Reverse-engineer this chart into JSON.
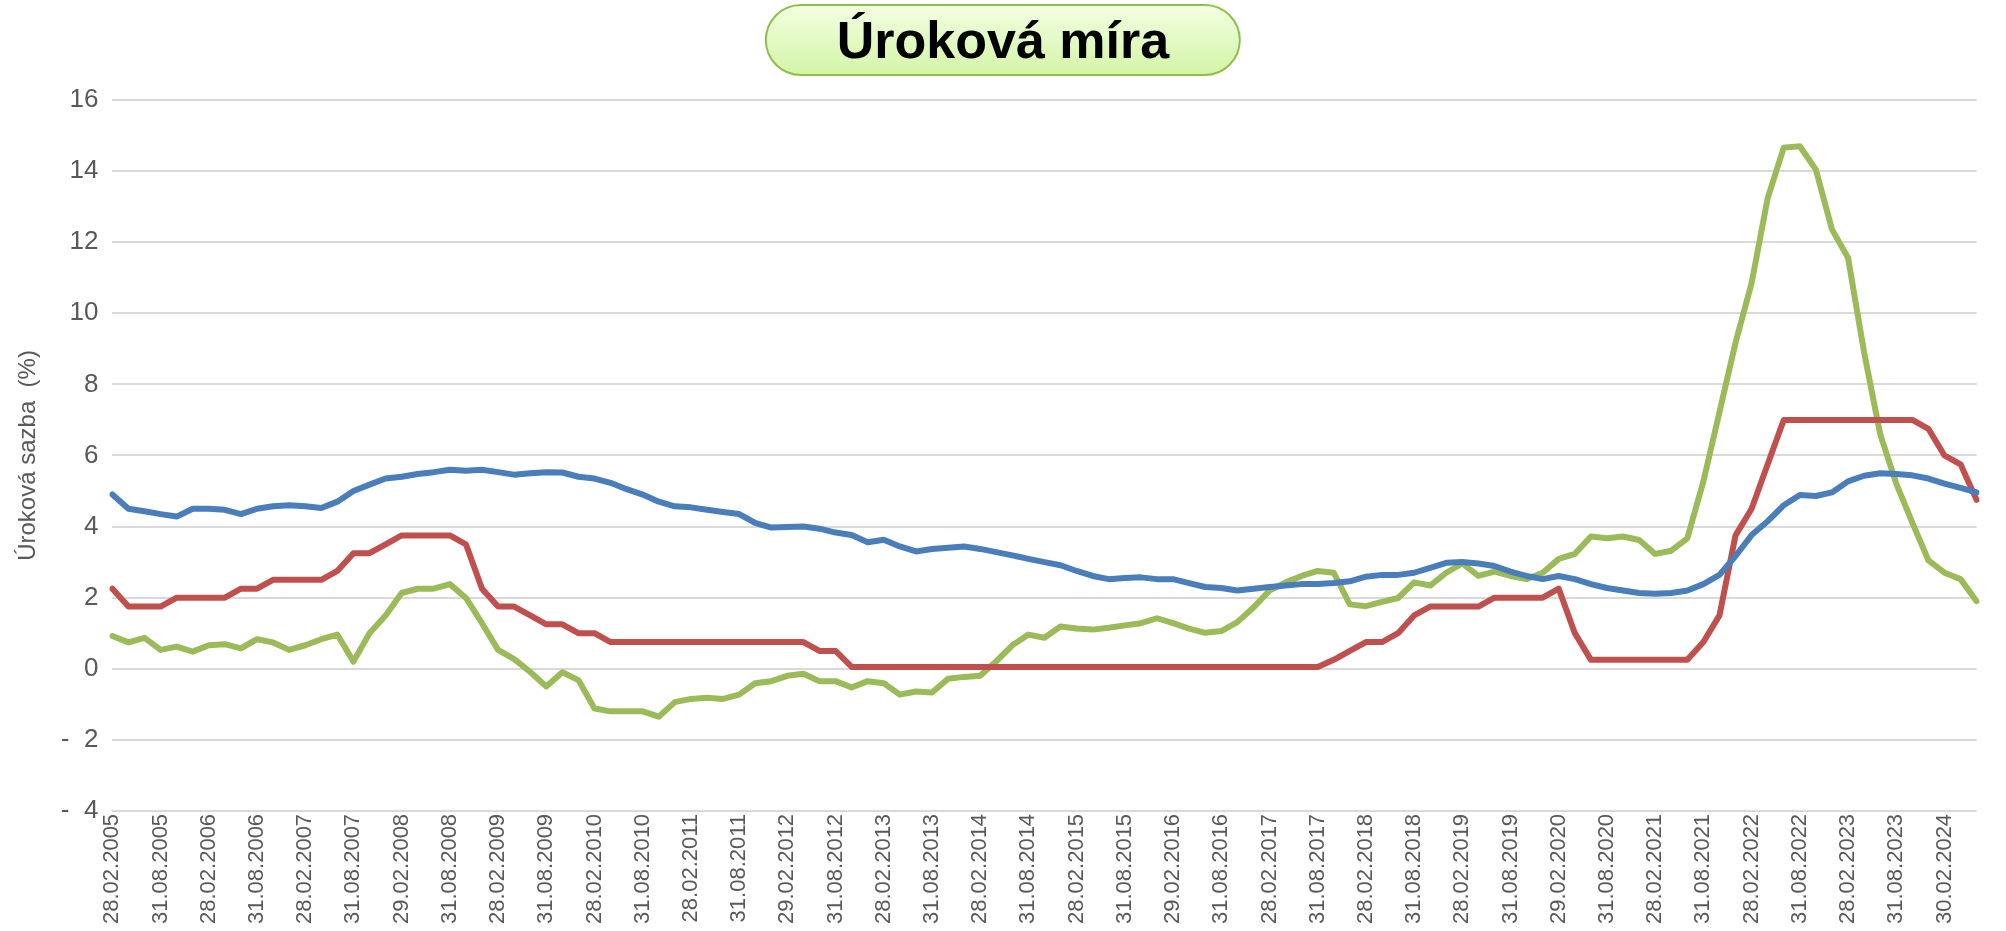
{
  "chart_data": {
    "type": "line",
    "title": "Úroková míra",
    "ylabel": "Úroková sazba  (%)",
    "categories": [
      "28.02.2005",
      null,
      null,
      "31.08.2005",
      null,
      null,
      "28.02.2006",
      null,
      null,
      "31.08.2006",
      null,
      null,
      "28.02.2007",
      null,
      null,
      "31.08.2007",
      null,
      null,
      "29.02.2008",
      null,
      null,
      "31.08.2008",
      null,
      null,
      "28.02.2009",
      null,
      null,
      "31.08.2009",
      null,
      null,
      "28.02.2010",
      null,
      null,
      "31.08.2010",
      null,
      null,
      "28.02.2011",
      null,
      null,
      "31.08.2011",
      null,
      null,
      "29.02.2012",
      null,
      null,
      "31.08.2012",
      null,
      null,
      "28.02.2013",
      null,
      null,
      "31.08.2013",
      null,
      null,
      "28.02.2014",
      null,
      null,
      "31.08.2014",
      null,
      null,
      "28.02.2015",
      null,
      null,
      "31.08.2015",
      null,
      null,
      "29.02.2016",
      null,
      null,
      "31.08.2016",
      null,
      null,
      "28.02.2017",
      null,
      null,
      "31.08.2017",
      null,
      null,
      "28.02.2018",
      null,
      null,
      "31.08.2018",
      null,
      null,
      "28.02.2019",
      null,
      null,
      "31.08.2019",
      null,
      null,
      "29.02.2020",
      null,
      null,
      "31.08.2020",
      null,
      null,
      "28.02.2021",
      null,
      null,
      "31.08.2021",
      null,
      null,
      "28.02.2022",
      null,
      null,
      "31.08.2022",
      null,
      null,
      "28.02.2023",
      null,
      null,
      "31.08.2023",
      null,
      null,
      "30.02.2024",
      null,
      null
    ],
    "series": [
      {
        "color": "#4a7ebb",
        "values": [
          4.9,
          4.5,
          4.43,
          4.35,
          4.28,
          4.5,
          4.5,
          4.47,
          4.35,
          4.5,
          4.57,
          4.6,
          4.57,
          4.52,
          4.7,
          5.0,
          5.18,
          5.35,
          5.4,
          5.48,
          5.53,
          5.6,
          5.57,
          5.6,
          5.53,
          5.46,
          5.5,
          5.53,
          5.52,
          5.4,
          5.35,
          5.23,
          5.05,
          4.9,
          4.7,
          4.57,
          4.54,
          4.47,
          4.41,
          4.35,
          4.1,
          3.97,
          3.99,
          4.0,
          3.94,
          3.83,
          3.76,
          3.56,
          3.63,
          3.44,
          3.3,
          3.37,
          3.4,
          3.44,
          3.37,
          3.28,
          3.19,
          3.09,
          3.0,
          2.91,
          2.75,
          2.61,
          2.52,
          2.55,
          2.57,
          2.52,
          2.52,
          2.41,
          2.3,
          2.27,
          2.2,
          2.25,
          2.3,
          2.34,
          2.38,
          2.38,
          2.41,
          2.46,
          2.59,
          2.64,
          2.64,
          2.7,
          2.84,
          2.98,
          3.0,
          2.96,
          2.89,
          2.73,
          2.61,
          2.52,
          2.61,
          2.52,
          2.38,
          2.27,
          2.2,
          2.13,
          2.11,
          2.13,
          2.2,
          2.38,
          2.64,
          3.17,
          3.76,
          4.15,
          4.6,
          4.89,
          4.86,
          4.96,
          5.27,
          5.43,
          5.5,
          5.48,
          5.44,
          5.35,
          5.21,
          5.09,
          4.96
        ]
      },
      {
        "color": "#c0504d",
        "values": [
          2.25,
          1.75,
          1.75,
          1.75,
          2.0,
          2.0,
          2.0,
          2.0,
          2.25,
          2.25,
          2.5,
          2.5,
          2.5,
          2.5,
          2.75,
          3.25,
          3.25,
          3.5,
          3.75,
          3.75,
          3.75,
          3.75,
          3.5,
          2.25,
          1.75,
          1.75,
          1.5,
          1.25,
          1.25,
          1.0,
          1.0,
          0.75,
          0.75,
          0.75,
          0.75,
          0.75,
          0.75,
          0.75,
          0.75,
          0.75,
          0.75,
          0.75,
          0.75,
          0.75,
          0.5,
          0.5,
          0.05,
          0.05,
          0.05,
          0.05,
          0.05,
          0.05,
          0.05,
          0.05,
          0.05,
          0.05,
          0.05,
          0.05,
          0.05,
          0.05,
          0.05,
          0.05,
          0.05,
          0.05,
          0.05,
          0.05,
          0.05,
          0.05,
          0.05,
          0.05,
          0.05,
          0.05,
          0.05,
          0.05,
          0.05,
          0.05,
          0.25,
          0.5,
          0.75,
          0.75,
          1.0,
          1.5,
          1.75,
          1.75,
          1.75,
          1.75,
          2.0,
          2.0,
          2.0,
          2.0,
          2.25,
          1.0,
          0.25,
          0.25,
          0.25,
          0.25,
          0.25,
          0.25,
          0.25,
          0.75,
          1.5,
          3.75,
          4.5,
          5.75,
          7.0,
          7.0,
          7.0,
          7.0,
          7.0,
          7.0,
          7.0,
          7.0,
          7.0,
          6.75,
          6.0,
          5.75,
          4.75
        ]
      },
      {
        "color": "#9bbb59",
        "values": [
          0.92,
          0.74,
          0.87,
          0.53,
          0.62,
          0.48,
          0.66,
          0.69,
          0.57,
          0.83,
          0.74,
          0.53,
          0.66,
          0.83,
          0.96,
          0.2,
          1.0,
          1.5,
          2.13,
          2.25,
          2.25,
          2.38,
          1.99,
          1.28,
          0.53,
          0.27,
          -0.09,
          -0.5,
          -0.1,
          -0.32,
          -1.12,
          -1.2,
          -1.2,
          -1.2,
          -1.35,
          -0.94,
          -0.85,
          -0.82,
          -0.85,
          -0.73,
          -0.41,
          -0.35,
          -0.2,
          -0.14,
          -0.35,
          -0.35,
          -0.53,
          -0.35,
          -0.41,
          -0.73,
          -0.64,
          -0.67,
          -0.28,
          -0.23,
          -0.2,
          0.21,
          0.66,
          0.96,
          0.87,
          1.19,
          1.13,
          1.1,
          1.15,
          1.22,
          1.28,
          1.42,
          1.28,
          1.13,
          1.01,
          1.06,
          1.31,
          1.72,
          2.2,
          2.43,
          2.61,
          2.75,
          2.7,
          1.81,
          1.76,
          1.88,
          1.99,
          2.43,
          2.34,
          2.7,
          2.96,
          2.61,
          2.73,
          2.61,
          2.52,
          2.7,
          3.09,
          3.23,
          3.72,
          3.67,
          3.72,
          3.62,
          3.23,
          3.32,
          3.67,
          5.27,
          7.22,
          9.17,
          10.85,
          13.24,
          14.66,
          14.7,
          14.04,
          12.36,
          11.56,
          8.9,
          6.6,
          5.21,
          4.11,
          3.05,
          2.7,
          2.52,
          1.9
        ]
      }
    ],
    "ylim": [
      -4,
      16
    ],
    "yticks": [
      {
        "value": -4,
        "label": "-  4"
      },
      {
        "value": -2,
        "label": "-  2"
      },
      0,
      2,
      4,
      6,
      8,
      10,
      12,
      14,
      16
    ],
    "grid": "y",
    "legend": false,
    "marker": "none",
    "line_style": "solid"
  }
}
